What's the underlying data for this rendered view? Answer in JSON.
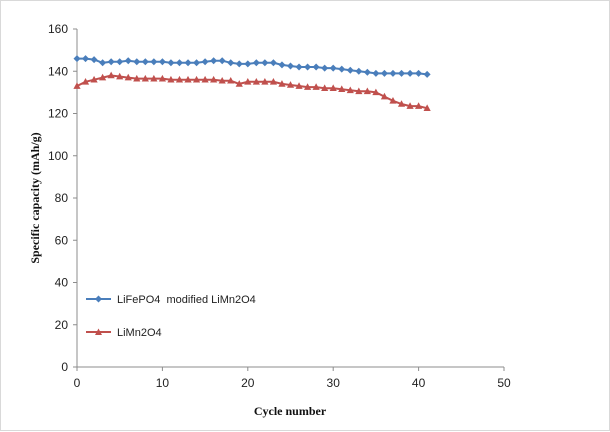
{
  "chart_data": {
    "type": "line",
    "title": "",
    "xlabel": "Cycle number",
    "ylabel": "Specific capacity (mAh/g)",
    "xlim": [
      0,
      50
    ],
    "ylim": [
      0,
      160
    ],
    "xticks": [
      0,
      10,
      20,
      30,
      40,
      50
    ],
    "yticks": [
      0,
      20,
      40,
      60,
      80,
      100,
      120,
      140,
      160
    ],
    "grid": false,
    "legend": "lower-left",
    "series": [
      {
        "name": "LiFePO4  modified LiMn2O4",
        "color": "#4a7ebb",
        "marker": "diamond",
        "x": [
          0,
          1,
          2,
          3,
          4,
          5,
          6,
          7,
          8,
          9,
          10,
          11,
          12,
          13,
          14,
          15,
          16,
          17,
          18,
          19,
          20,
          21,
          22,
          23,
          24,
          25,
          26,
          27,
          28,
          29,
          30,
          31,
          32,
          33,
          34,
          35,
          36,
          37,
          38,
          39,
          40,
          41
        ],
        "y": [
          146,
          146,
          145.5,
          144,
          144.5,
          144.5,
          145,
          144.5,
          144.5,
          144.5,
          144.5,
          144,
          144,
          144,
          144,
          144.5,
          145,
          145,
          144,
          143.5,
          143.5,
          144,
          144,
          144,
          143,
          142.5,
          142,
          142,
          142,
          141.5,
          141.5,
          141,
          140.5,
          140,
          139.5,
          139,
          139,
          139,
          139,
          139,
          139,
          138.5
        ]
      },
      {
        "name": "LiMn2O4",
        "color": "#c0504d",
        "marker": "triangle",
        "x": [
          0,
          1,
          2,
          3,
          4,
          5,
          6,
          7,
          8,
          9,
          10,
          11,
          12,
          13,
          14,
          15,
          16,
          17,
          18,
          19,
          20,
          21,
          22,
          23,
          24,
          25,
          26,
          27,
          28,
          29,
          30,
          31,
          32,
          33,
          34,
          35,
          36,
          37,
          38,
          39,
          40,
          41
        ],
        "y": [
          133,
          135,
          136,
          137,
          138,
          137.5,
          137,
          136.5,
          136.5,
          136.5,
          136.5,
          136,
          136,
          136,
          136,
          136,
          136,
          135.5,
          135.5,
          134,
          135,
          135,
          135,
          135,
          134,
          133.5,
          133,
          132.5,
          132.5,
          132,
          132,
          131.5,
          131,
          130.5,
          130.5,
          130,
          128,
          126,
          124.5,
          123.5,
          123.5,
          122.5
        ]
      }
    ]
  }
}
